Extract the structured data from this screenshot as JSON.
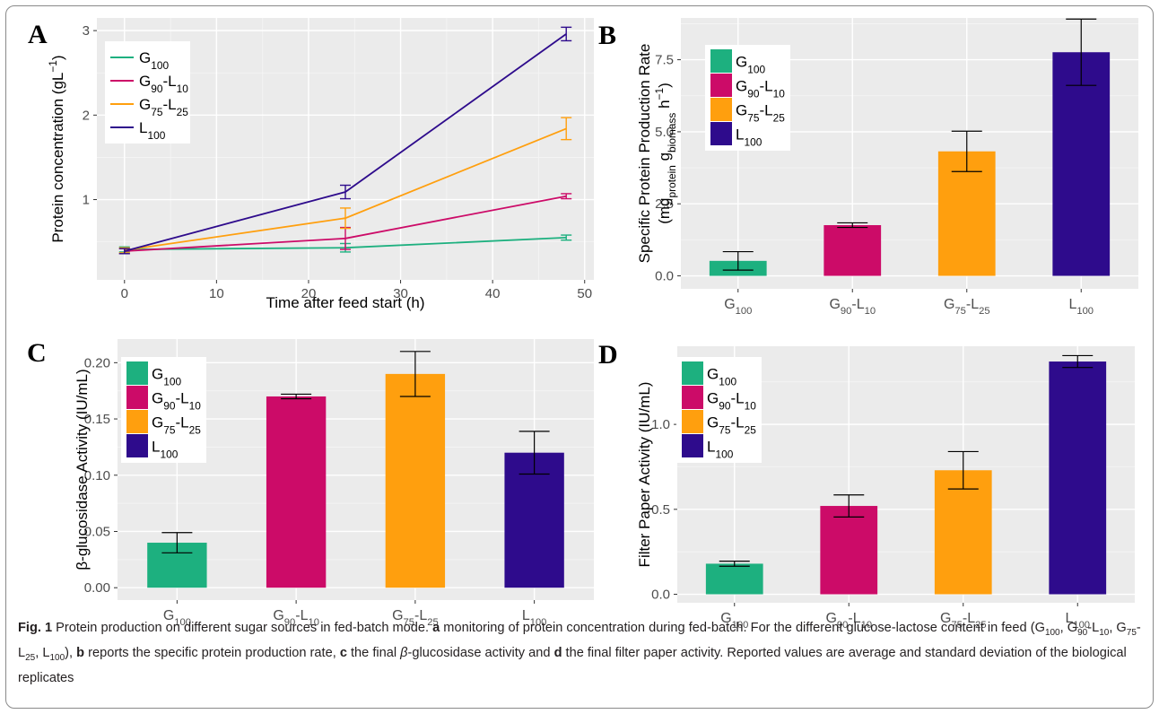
{
  "figure": {
    "caption": {
      "fig_label": "Fig. 1",
      "parts": [
        {
          "t": " Protein production on different sugar sources in fed-batch mode. "
        },
        {
          "t": "a",
          "b": true
        },
        {
          "t": " monitoring of protein concentration during fed-batch. For the different glucose-lactose content in feed (G"
        },
        {
          "t": "100",
          "sub": true
        },
        {
          "t": ", G"
        },
        {
          "t": "90",
          "sub": true
        },
        {
          "t": "-L"
        },
        {
          "t": "10",
          "sub": true
        },
        {
          "t": ", G"
        },
        {
          "t": "75",
          "sub": true
        },
        {
          "t": "-L"
        },
        {
          "t": "25",
          "sub": true
        },
        {
          "t": ", L"
        },
        {
          "t": "100",
          "sub": true
        },
        {
          "t": "), "
        },
        {
          "t": "b",
          "b": true
        },
        {
          "t": " reports the specific protein production rate, "
        },
        {
          "t": "c",
          "b": true
        },
        {
          "t": " the final "
        },
        {
          "t": "β",
          "i": true
        },
        {
          "t": "-glucosidase activity and "
        },
        {
          "t": "d",
          "b": true
        },
        {
          "t": " the final filter paper activity. Reported values are average and standard deviation of the biological replicates"
        }
      ]
    },
    "colors": {
      "G100": "#1db07f",
      "G90L10": "#cc0b68",
      "G75L25": "#ff9f0e",
      "L100": "#2e0b8c"
    },
    "legend_labels": [
      {
        "key": "G100",
        "parts": [
          {
            "t": "G"
          },
          {
            "t": "100",
            "sub": true
          }
        ]
      },
      {
        "key": "G90L10",
        "parts": [
          {
            "t": "G"
          },
          {
            "t": "90",
            "sub": true
          },
          {
            "t": "-L"
          },
          {
            "t": "10",
            "sub": true
          }
        ]
      },
      {
        "key": "G75L25",
        "parts": [
          {
            "t": "G"
          },
          {
            "t": "75",
            "sub": true
          },
          {
            "t": "-L"
          },
          {
            "t": "25",
            "sub": true
          }
        ]
      },
      {
        "key": "L100",
        "parts": [
          {
            "t": "L"
          },
          {
            "t": "100",
            "sub": true
          }
        ]
      }
    ]
  },
  "chart_data": [
    {
      "panel": "A",
      "type": "line",
      "xlabel": "Time after feed start (h)",
      "ylabel_parts": [
        {
          "t": "Protein concentration (gL"
        },
        {
          "t": "−1",
          "sup": true
        },
        {
          "t": ")"
        }
      ],
      "xlim": [
        -3,
        51
      ],
      "ylim": [
        0.05,
        3.15
      ],
      "xticks": [
        0,
        10,
        20,
        30,
        40,
        50
      ],
      "yticks": [
        1,
        2,
        3
      ],
      "grid": true,
      "legend": "top-left",
      "series": [
        {
          "key": "G100",
          "x": [
            0,
            24,
            48
          ],
          "y": [
            0.41,
            0.43,
            0.55
          ],
          "err": [
            0.03,
            0.05,
            0.03
          ]
        },
        {
          "key": "G90L10",
          "x": [
            0,
            24,
            48
          ],
          "y": [
            0.39,
            0.54,
            1.04
          ],
          "err": [
            0.03,
            0.13,
            0.03
          ]
        },
        {
          "key": "G75L25",
          "x": [
            0,
            24,
            48
          ],
          "y": [
            0.4,
            0.78,
            1.84
          ],
          "err": [
            0.03,
            0.12,
            0.13
          ]
        },
        {
          "key": "L100",
          "x": [
            0,
            24,
            48
          ],
          "y": [
            0.39,
            1.09,
            2.96
          ],
          "err": [
            0.03,
            0.08,
            0.08
          ]
        }
      ]
    },
    {
      "panel": "B",
      "type": "bar",
      "categories": [
        [
          {
            "t": "G"
          },
          {
            "t": "100",
            "sub": true
          }
        ],
        [
          {
            "t": "G"
          },
          {
            "t": "90",
            "sub": true
          },
          {
            "t": "-L"
          },
          {
            "t": "10",
            "sub": true
          }
        ],
        [
          {
            "t": "G"
          },
          {
            "t": "75",
            "sub": true
          },
          {
            "t": "-L"
          },
          {
            "t": "25",
            "sub": true
          }
        ],
        [
          {
            "t": "L"
          },
          {
            "t": "100",
            "sub": true
          }
        ]
      ],
      "keys": [
        "G100",
        "G90L10",
        "G75L25",
        "L100"
      ],
      "values": [
        0.52,
        1.76,
        4.32,
        7.76
      ],
      "errors": [
        0.32,
        0.08,
        0.7,
        1.15
      ],
      "ylim": [
        -0.45,
        8.95
      ],
      "yticks": [
        "0.0",
        "2.5",
        "5.0",
        "7.5"
      ],
      "ylabel_line1": "Specific Protein Production Rate",
      "ylabel_line2_parts": [
        {
          "t": "(mg"
        },
        {
          "t": "protein",
          "sub": true
        },
        {
          "t": " g"
        },
        {
          "t": "biomass",
          "sub": true
        },
        {
          "t": " h"
        },
        {
          "t": "−1",
          "sup": true
        },
        {
          "t": ")"
        }
      ],
      "grid": true,
      "legend": "top-left"
    },
    {
      "panel": "C",
      "type": "bar",
      "categories": [
        [
          {
            "t": "G"
          },
          {
            "t": "100",
            "sub": true
          }
        ],
        [
          {
            "t": "G"
          },
          {
            "t": "90",
            "sub": true
          },
          {
            "t": "-L"
          },
          {
            "t": "10",
            "sub": true
          }
        ],
        [
          {
            "t": "G"
          },
          {
            "t": "75",
            "sub": true
          },
          {
            "t": "-L"
          },
          {
            "t": "25",
            "sub": true
          }
        ],
        [
          {
            "t": "L"
          },
          {
            "t": "100",
            "sub": true
          }
        ]
      ],
      "keys": [
        "G100",
        "G90L10",
        "G75L25",
        "L100"
      ],
      "values": [
        0.04,
        0.17,
        0.19,
        0.12
      ],
      "errors": [
        0.009,
        0.002,
        0.02,
        0.019
      ],
      "ylim": [
        -0.011,
        0.221
      ],
      "yticks": [
        "0.00",
        "0.05",
        "0.10",
        "0.15",
        "0.20"
      ],
      "ylabel": "β-glucosidase Activity (IU/mL)",
      "grid": true,
      "legend": "top-left"
    },
    {
      "panel": "D",
      "type": "bar",
      "categories": [
        [
          {
            "t": "G"
          },
          {
            "t": "100",
            "sub": true
          }
        ],
        [
          {
            "t": "G"
          },
          {
            "t": "90",
            "sub": true
          },
          {
            "t": "-L"
          },
          {
            "t": "10",
            "sub": true
          }
        ],
        [
          {
            "t": "G"
          },
          {
            "t": "75",
            "sub": true
          },
          {
            "t": "-L"
          },
          {
            "t": "25",
            "sub": true
          }
        ],
        [
          {
            "t": "L"
          },
          {
            "t": "100",
            "sub": true
          }
        ]
      ],
      "keys": [
        "G100",
        "G90L10",
        "G75L25",
        "L100"
      ],
      "values": [
        0.18,
        0.52,
        0.73,
        1.37
      ],
      "errors": [
        0.015,
        0.065,
        0.11,
        0.035
      ],
      "ylim": [
        -0.05,
        1.46
      ],
      "yticks": [
        "0.0",
        "0.5",
        "1.0"
      ],
      "ylabel": "Filter Paper Activity (IU/mL)",
      "grid": true,
      "legend": "top-left"
    }
  ]
}
